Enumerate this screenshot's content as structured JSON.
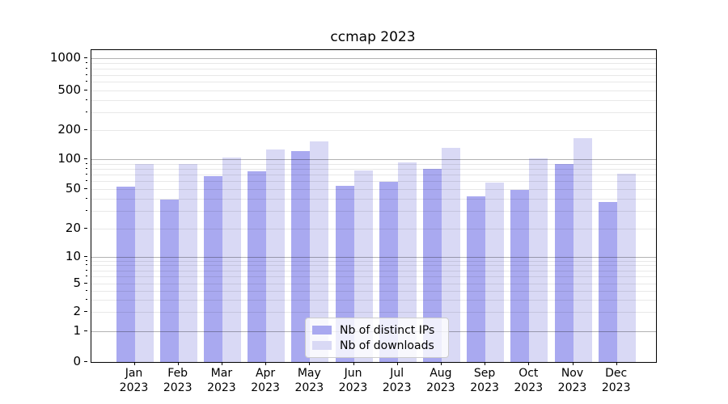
{
  "chart_data": {
    "type": "bar",
    "title": "ccmap 2023",
    "categories": [
      "Jan",
      "Feb",
      "Mar",
      "Apr",
      "May",
      "Jun",
      "Jul",
      "Aug",
      "Sep",
      "Oct",
      "Nov",
      "Dec"
    ],
    "x_year_label": "2023",
    "series": [
      {
        "name": "Nb of distinct IPs",
        "color": "#a9a9f0",
        "values": [
          53,
          39,
          67,
          76,
          121,
          54,
          59,
          80,
          42,
          49,
          89,
          37
        ]
      },
      {
        "name": "Nb of downloads",
        "color": "#d9d9f5",
        "values": [
          90,
          90,
          104,
          127,
          152,
          77,
          93,
          132,
          58,
          103,
          165,
          71
        ]
      }
    ],
    "y_ticks": [
      0,
      1,
      2,
      5,
      10,
      20,
      50,
      100,
      200,
      500,
      1000
    ],
    "y_scale": "symlog",
    "ylim": [
      0,
      1200
    ],
    "grid": true,
    "legend_position": "bottom-center"
  }
}
